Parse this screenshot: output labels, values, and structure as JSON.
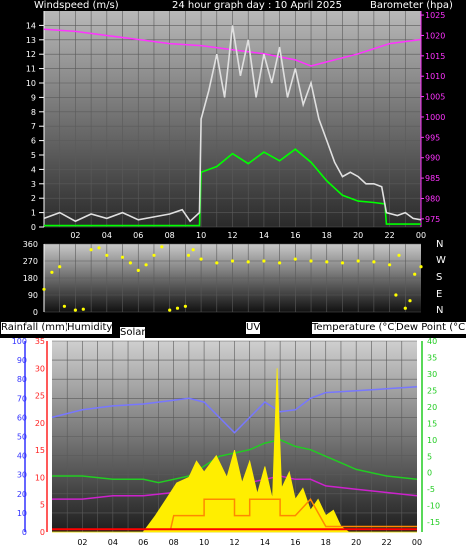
{
  "top_labels": {
    "left": "Windspeed (m/s)",
    "center": "24 hour graph day : 10 April 2025",
    "right": "Barometer (hpa)"
  },
  "compass": [
    "N",
    "W",
    "S",
    "E",
    "N"
  ],
  "bottom_labels": {
    "rain": "Rainfall (mm)",
    "humidity": "Humidity",
    "solar": "Solar",
    "uv": "UV",
    "temp": "Temperature (°C)",
    "dew": "Dew Point (°C)"
  },
  "chart_data": [
    {
      "type": "line",
      "title": "24 hour graph day : 10 April 2025",
      "x": [
        "02",
        "04",
        "06",
        "08",
        "10",
        "12",
        "14",
        "16",
        "18",
        "20",
        "22",
        "00"
      ],
      "xlim": [
        0,
        24
      ],
      "left_axis": {
        "label": "Windspeed (m/s)",
        "ylim": [
          0,
          15
        ],
        "ticks": [
          0,
          1,
          2,
          3,
          4,
          5,
          6,
          7,
          8,
          9,
          10,
          11,
          12,
          13,
          14
        ]
      },
      "right_axis": {
        "label": "Barometer (hpa)",
        "ylim": [
          973,
          1026
        ],
        "ticks": [
          975,
          980,
          985,
          990,
          995,
          1000,
          1005,
          1010,
          1015,
          1020,
          1025
        ]
      },
      "series": [
        {
          "name": "Barometer (hpa)",
          "axis": "right",
          "color": "#ff33ff",
          "points": [
            [
              0,
              1021.5
            ],
            [
              2,
              1021
            ],
            [
              4,
              1020
            ],
            [
              6,
              1019
            ],
            [
              8,
              1018
            ],
            [
              10,
              1017.5
            ],
            [
              12,
              1016.5
            ],
            [
              14,
              1015.5
            ],
            [
              16,
              1014
            ],
            [
              17,
              1012.5
            ],
            [
              18,
              1013.5
            ],
            [
              20,
              1015.5
            ],
            [
              22,
              1018
            ],
            [
              24,
              1019
            ]
          ]
        },
        {
          "name": "Windspeed (m/s)",
          "axis": "left",
          "color": "#00ff00",
          "points": [
            [
              0,
              0.1
            ],
            [
              9.9,
              0.1
            ],
            [
              10,
              3.8
            ],
            [
              11,
              4.2
            ],
            [
              12,
              5.1
            ],
            [
              13,
              4.4
            ],
            [
              14,
              5.2
            ],
            [
              15,
              4.6
            ],
            [
              16,
              5.4
            ],
            [
              17,
              4.5
            ],
            [
              18,
              3.2
            ],
            [
              19,
              2.2
            ],
            [
              20,
              1.8
            ],
            [
              21,
              1.7
            ],
            [
              21.7,
              1.6
            ],
            [
              21.8,
              0.2
            ],
            [
              24,
              0.2
            ]
          ]
        },
        {
          "name": "Gust (m/s)",
          "axis": "left",
          "color": "#e0e0e0",
          "points": [
            [
              0,
              0.6
            ],
            [
              1,
              1.0
            ],
            [
              2,
              0.4
            ],
            [
              3,
              0.9
            ],
            [
              4,
              0.6
            ],
            [
              5,
              1.0
            ],
            [
              6,
              0.5
            ],
            [
              7,
              0.7
            ],
            [
              8,
              0.9
            ],
            [
              8.8,
              1.2
            ],
            [
              9.3,
              0.4
            ],
            [
              9.9,
              1.0
            ],
            [
              10,
              7.5
            ],
            [
              10.5,
              9.5
            ],
            [
              11,
              12.0
            ],
            [
              11.5,
              9.0
            ],
            [
              12,
              14.0
            ],
            [
              12.5,
              10.5
            ],
            [
              13,
              13.0
            ],
            [
              13.5,
              9.0
            ],
            [
              14,
              12.0
            ],
            [
              14.5,
              10.0
            ],
            [
              15,
              12.5
            ],
            [
              15.5,
              9.0
            ],
            [
              16,
              11.0
            ],
            [
              16.5,
              8.5
            ],
            [
              17,
              10.0
            ],
            [
              17.5,
              7.5
            ],
            [
              18,
              6.0
            ],
            [
              18.5,
              4.5
            ],
            [
              19,
              3.5
            ],
            [
              19.5,
              3.8
            ],
            [
              20,
              3.5
            ],
            [
              20.5,
              3.0
            ],
            [
              21,
              3.0
            ],
            [
              21.5,
              2.8
            ],
            [
              21.8,
              1.0
            ],
            [
              22.5,
              0.8
            ],
            [
              23,
              1.0
            ],
            [
              23.5,
              0.6
            ],
            [
              24,
              0.5
            ]
          ]
        }
      ]
    },
    {
      "type": "scatter",
      "name": "Wind direction",
      "xlim": [
        0,
        24
      ],
      "ylim": [
        0,
        360
      ],
      "yticks": [
        0,
        90,
        180,
        270,
        360
      ],
      "series": [
        {
          "name": "Wind direction",
          "color": "#ffff00",
          "points": [
            [
              0,
              120
            ],
            [
              0.5,
              210
            ],
            [
              1,
              240
            ],
            [
              1.3,
              30
            ],
            [
              2,
              10
            ],
            [
              2.5,
              15
            ],
            [
              3,
              330
            ],
            [
              3.5,
              340
            ],
            [
              4,
              300
            ],
            [
              5,
              290
            ],
            [
              5.5,
              260
            ],
            [
              6,
              220
            ],
            [
              6.5,
              250
            ],
            [
              7,
              300
            ],
            [
              7.5,
              345
            ],
            [
              8,
              10
            ],
            [
              8.5,
              20
            ],
            [
              9,
              30
            ],
            [
              9.2,
              300
            ],
            [
              9.5,
              330
            ],
            [
              10,
              280
            ],
            [
              11,
              260
            ],
            [
              12,
              270
            ],
            [
              13,
              265
            ],
            [
              14,
              270
            ],
            [
              15,
              260
            ],
            [
              16,
              280
            ],
            [
              17,
              270
            ],
            [
              18,
              265
            ],
            [
              19,
              260
            ],
            [
              20,
              270
            ],
            [
              21,
              265
            ],
            [
              22,
              250
            ],
            [
              22.4,
              90
            ],
            [
              22.6,
              300
            ],
            [
              23,
              20
            ],
            [
              23.3,
              60
            ],
            [
              23.6,
              200
            ],
            [
              24,
              240
            ]
          ]
        }
      ]
    },
    {
      "type": "line",
      "x": [
        "02",
        "04",
        "06",
        "08",
        "10",
        "12",
        "14",
        "16",
        "18",
        "20",
        "22",
        "00"
      ],
      "xlim": [
        0,
        24
      ],
      "humidity_axis": {
        "label": "Humidity",
        "ylim": [
          0,
          100
        ],
        "ticks": [
          0,
          10,
          20,
          30,
          40,
          50,
          60,
          70,
          80,
          90,
          100
        ]
      },
      "rain_axis": {
        "label": "Rainfall (mm)",
        "ylim": [
          0,
          35
        ],
        "ticks": [
          0,
          5,
          10,
          15,
          20,
          25,
          30,
          35
        ]
      },
      "temp_axis": {
        "label": "Temperature (°C)",
        "ylim": [
          -18,
          40
        ],
        "ticks": [
          -15,
          -10,
          -5,
          0,
          5,
          10,
          15,
          20,
          25,
          30,
          35,
          40
        ]
      },
      "series": [
        {
          "name": "Humidity",
          "color": "#7777ff",
          "points": [
            [
              0,
              60
            ],
            [
              2,
              64
            ],
            [
              4,
              66
            ],
            [
              6,
              67
            ],
            [
              8,
              69
            ],
            [
              9,
              70
            ],
            [
              10,
              68
            ],
            [
              11,
              60
            ],
            [
              12,
              52
            ],
            [
              13,
              60
            ],
            [
              14,
              68
            ],
            [
              15,
              63
            ],
            [
              16,
              64
            ],
            [
              17,
              70
            ],
            [
              18,
              73
            ],
            [
              20,
              74
            ],
            [
              22,
              75
            ],
            [
              24,
              76
            ]
          ]
        },
        {
          "name": "Temperature (°C)",
          "color": "#22cc22",
          "points": [
            [
              0,
              -1
            ],
            [
              2,
              -1
            ],
            [
              4,
              -2
            ],
            [
              6,
              -2
            ],
            [
              7,
              -3
            ],
            [
              8,
              -2
            ],
            [
              9,
              -1
            ],
            [
              10,
              2
            ],
            [
              11,
              5
            ],
            [
              12,
              6
            ],
            [
              13,
              7
            ],
            [
              14,
              9
            ],
            [
              15,
              10
            ],
            [
              16,
              8
            ],
            [
              17,
              7
            ],
            [
              18,
              5
            ],
            [
              19,
              3
            ],
            [
              20,
              1
            ],
            [
              22,
              -1
            ],
            [
              24,
              -2
            ]
          ]
        },
        {
          "name": "Dew Point (°C)",
          "color": "#cc22cc",
          "points": [
            [
              0,
              -8
            ],
            [
              2,
              -8
            ],
            [
              4,
              -7
            ],
            [
              6,
              -7
            ],
            [
              8,
              -6
            ],
            [
              9,
              -5
            ],
            [
              10,
              -4
            ],
            [
              11,
              -3
            ],
            [
              12,
              -4
            ],
            [
              13,
              -3
            ],
            [
              14,
              -2
            ],
            [
              15,
              -1
            ],
            [
              16,
              -2
            ],
            [
              17,
              -2
            ],
            [
              18,
              -4
            ],
            [
              20,
              -5
            ],
            [
              22,
              -6
            ],
            [
              24,
              -7
            ]
          ]
        },
        {
          "name": "Solar",
          "color": "#ffee00",
          "points": [
            [
              0,
              0
            ],
            [
              6,
              0
            ],
            [
              6.8,
              3
            ],
            [
              7.5,
              6
            ],
            [
              8.2,
              9
            ],
            [
              9,
              10
            ],
            [
              9.5,
              13
            ],
            [
              10,
              11
            ],
            [
              10.8,
              14
            ],
            [
              11.5,
              10
            ],
            [
              12,
              15
            ],
            [
              12.5,
              9
            ],
            [
              13,
              13
            ],
            [
              13.5,
              7
            ],
            [
              14,
              12
            ],
            [
              14.5,
              6
            ],
            [
              14.8,
              30
            ],
            [
              15.1,
              8
            ],
            [
              15.6,
              11
            ],
            [
              16,
              6
            ],
            [
              16.5,
              8
            ],
            [
              17,
              4
            ],
            [
              17.5,
              6
            ],
            [
              18,
              3
            ],
            [
              18.5,
              4
            ],
            [
              19,
              1
            ],
            [
              19.5,
              0
            ],
            [
              24,
              0
            ]
          ]
        },
        {
          "name": "UV",
          "color": "#ff8800",
          "points": [
            [
              0,
              0.5
            ],
            [
              7.8,
              0.5
            ],
            [
              8,
              3
            ],
            [
              10,
              3
            ],
            [
              10,
              6
            ],
            [
              12,
              6
            ],
            [
              12,
              3
            ],
            [
              13,
              3
            ],
            [
              13,
              6
            ],
            [
              15,
              6
            ],
            [
              15,
              3
            ],
            [
              16,
              3
            ],
            [
              17,
              6
            ],
            [
              18,
              1
            ],
            [
              24,
              1
            ]
          ]
        },
        {
          "name": "Rainfall (mm)",
          "color": "#ff0000",
          "points": [
            [
              0,
              0.5
            ],
            [
              24,
              0.5
            ]
          ]
        }
      ]
    }
  ]
}
